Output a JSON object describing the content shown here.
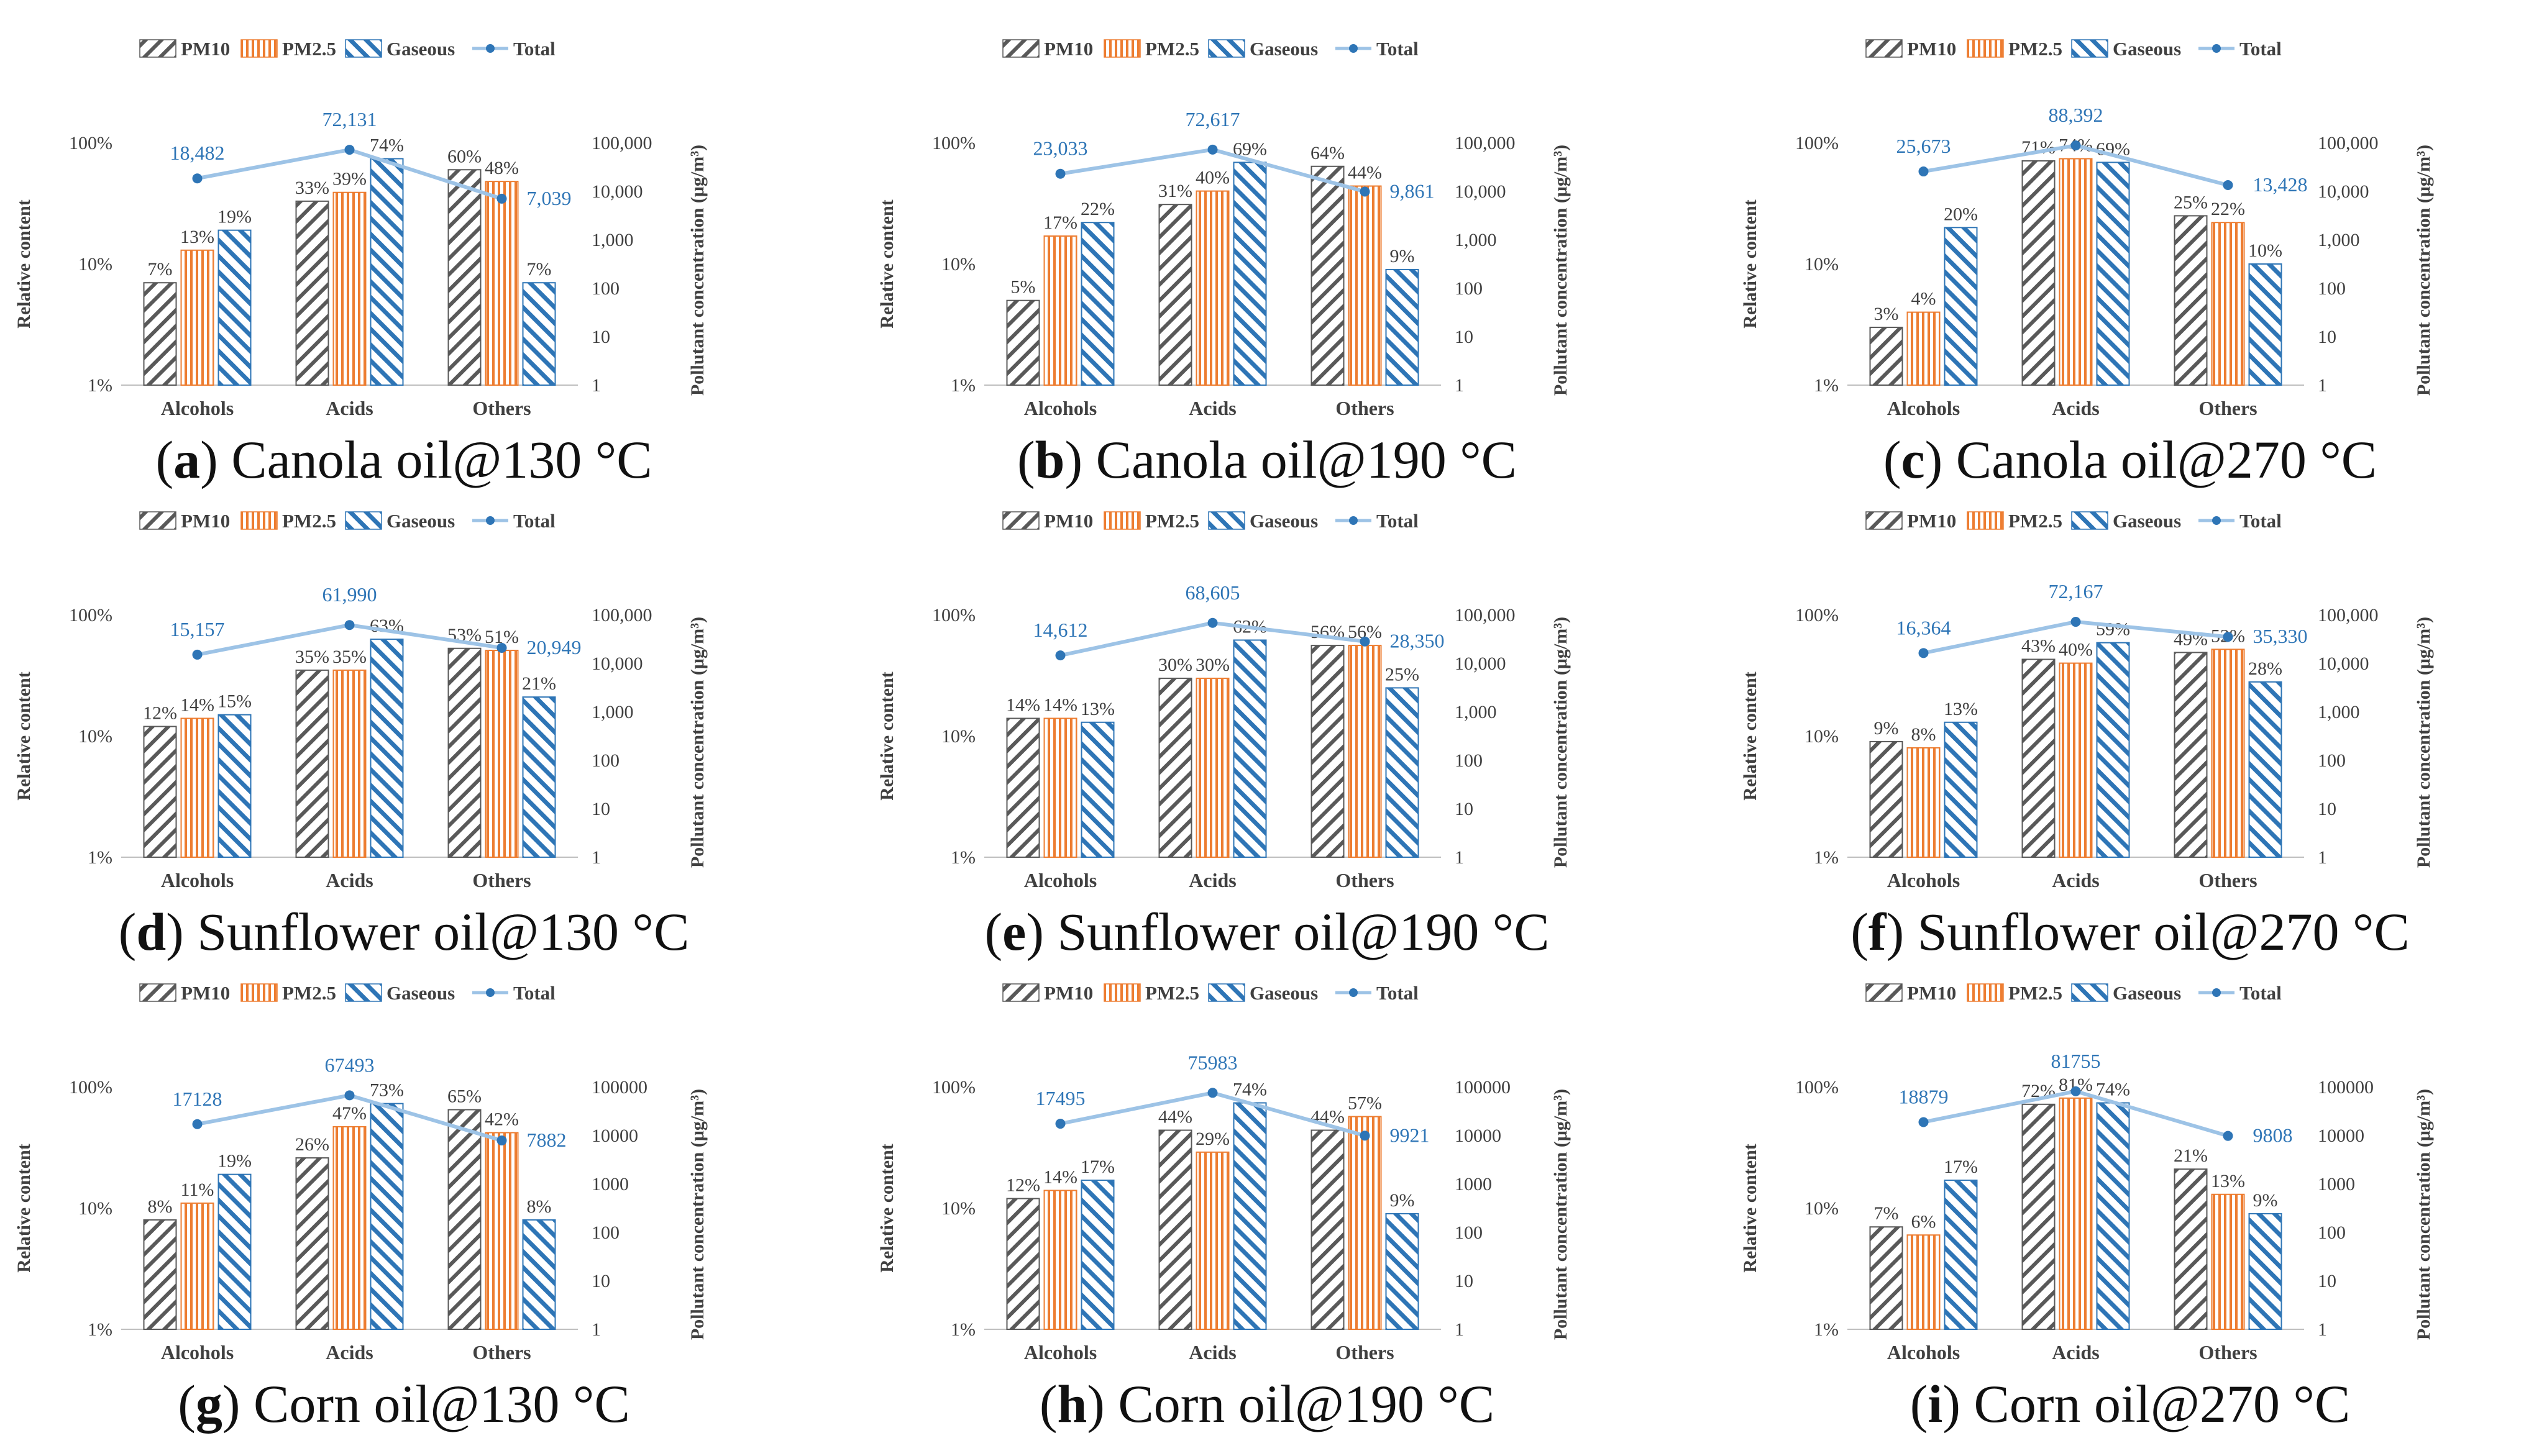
{
  "colors": {
    "pm10": "#595959",
    "pm25": "#ed7d31",
    "gaseous": "#2e75b6",
    "total_line": "#9dc3e6",
    "total_marker": "#2e75b6",
    "total_label": "#2e75b6",
    "axis": "#bfbfbf",
    "text": "#404040"
  },
  "shared": {
    "legend": [
      "PM10",
      "PM2.5",
      "Gaseous",
      "Total"
    ],
    "categories": [
      "Alcohols",
      "Acids",
      "Others"
    ],
    "ylabel_left": "Relative content",
    "ylabel_right": "Pollutant concentration (μg/m³)",
    "left_ticks": [
      "1%",
      "10%",
      "100%"
    ],
    "right_ticks_comma": [
      "1",
      "10",
      "100",
      "1,000",
      "10,000",
      "100,000"
    ],
    "right_ticks_plain": [
      "1",
      "10",
      "100",
      "1000",
      "10000",
      "100000"
    ]
  },
  "panels": [
    {
      "letter": "a",
      "caption": ") Canola oil@130 °C"
    },
    {
      "letter": "b",
      "caption": ") Canola oil@190 °C"
    },
    {
      "letter": "c",
      "caption": ") Canola oil@270 °C"
    },
    {
      "letter": "d",
      "caption": ") Sunflower oil@130 °C"
    },
    {
      "letter": "e",
      "caption": ") Sunflower oil@190 °C"
    },
    {
      "letter": "f",
      "caption": ") Sunflower oil@270 °C"
    },
    {
      "letter": "g",
      "caption": ") Corn oil@130 °C"
    },
    {
      "letter": "h",
      "caption": ") Corn oil@190 °C"
    },
    {
      "letter": "i",
      "caption": ") Corn oil@270 °C"
    }
  ],
  "chart_data": [
    {
      "type": "bar",
      "panel": "a",
      "title": "Canola oil@130 °C",
      "xlabel": "",
      "ylabel": "Relative content",
      "y2label": "Pollutant concentration (μg/m³)",
      "yscale": "log",
      "ylim": [
        0.01,
        1
      ],
      "y2lim": [
        1,
        100000
      ],
      "categories": [
        "Alcohols",
        "Acids",
        "Others"
      ],
      "tick_style": "comma",
      "series": [
        {
          "name": "PM10",
          "values": [
            0.07,
            0.33,
            0.6
          ],
          "labels": [
            "7%",
            "33%",
            "60%"
          ]
        },
        {
          "name": "PM2.5",
          "values": [
            0.13,
            0.39,
            0.48
          ],
          "labels": [
            "13%",
            "39%",
            "48%"
          ]
        },
        {
          "name": "Gaseous",
          "values": [
            0.19,
            0.74,
            0.07
          ],
          "labels": [
            "19%",
            "74%",
            "7%"
          ]
        },
        {
          "name": "Total",
          "axis": "right",
          "values": [
            18482,
            72131,
            7039
          ],
          "labels": [
            "18,482",
            "72,131",
            "7,039"
          ]
        }
      ]
    },
    {
      "type": "bar",
      "panel": "b",
      "title": "Canola oil@190 °C",
      "xlabel": "",
      "ylabel": "Relative content",
      "y2label": "Pollutant concentration (μg/m³)",
      "yscale": "log",
      "ylim": [
        0.01,
        1
      ],
      "y2lim": [
        1,
        100000
      ],
      "categories": [
        "Alcohols",
        "Acids",
        "Others"
      ],
      "tick_style": "comma",
      "series": [
        {
          "name": "PM10",
          "values": [
            0.05,
            0.31,
            0.64
          ],
          "labels": [
            "5%",
            "31%",
            "64%"
          ]
        },
        {
          "name": "PM2.5",
          "values": [
            0.17,
            0.4,
            0.44
          ],
          "labels": [
            "17%",
            "40%",
            "44%"
          ]
        },
        {
          "name": "Gaseous",
          "values": [
            0.22,
            0.69,
            0.09
          ],
          "labels": [
            "22%",
            "69%",
            "9%"
          ]
        },
        {
          "name": "Total",
          "axis": "right",
          "values": [
            23033,
            72617,
            9861
          ],
          "labels": [
            "23,033",
            "72,617",
            "9,861"
          ]
        }
      ]
    },
    {
      "type": "bar",
      "panel": "c",
      "title": "Canola oil@270 °C",
      "xlabel": "",
      "ylabel": "Relative content",
      "y2label": "Pollutant concentration (μg/m³)",
      "yscale": "log",
      "ylim": [
        0.01,
        1
      ],
      "y2lim": [
        1,
        100000
      ],
      "categories": [
        "Alcohols",
        "Acids",
        "Others"
      ],
      "tick_style": "comma",
      "series": [
        {
          "name": "PM10",
          "values": [
            0.03,
            0.71,
            0.25
          ],
          "labels": [
            "3%",
            "71%",
            "25%"
          ]
        },
        {
          "name": "PM2.5",
          "values": [
            0.04,
            0.74,
            0.22
          ],
          "labels": [
            "4%",
            "74%",
            "22%"
          ]
        },
        {
          "name": "Gaseous",
          "values": [
            0.2,
            0.69,
            0.1
          ],
          "labels": [
            "20%",
            "69%",
            "10%"
          ]
        },
        {
          "name": "Total",
          "axis": "right",
          "values": [
            25673,
            88392,
            13428
          ],
          "labels": [
            "25,673",
            "88,392",
            "13,428"
          ]
        }
      ]
    },
    {
      "type": "bar",
      "panel": "d",
      "title": "Sunflower oil@130 °C",
      "xlabel": "",
      "ylabel": "Relative content",
      "y2label": "Pollutant concentration (μg/m³)",
      "yscale": "log",
      "ylim": [
        0.01,
        1
      ],
      "y2lim": [
        1,
        100000
      ],
      "categories": [
        "Alcohols",
        "Acids",
        "Others"
      ],
      "tick_style": "comma",
      "series": [
        {
          "name": "PM10",
          "values": [
            0.12,
            0.35,
            0.53
          ],
          "labels": [
            "12%",
            "35%",
            "53%"
          ]
        },
        {
          "name": "PM2.5",
          "values": [
            0.14,
            0.35,
            0.51
          ],
          "labels": [
            "14%",
            "35%",
            "51%"
          ]
        },
        {
          "name": "Gaseous",
          "values": [
            0.15,
            0.63,
            0.21
          ],
          "labels": [
            "15%",
            "63%",
            "21%"
          ]
        },
        {
          "name": "Total",
          "axis": "right",
          "values": [
            15157,
            61990,
            20949
          ],
          "labels": [
            "15,157",
            "61,990",
            "20,949"
          ]
        }
      ]
    },
    {
      "type": "bar",
      "panel": "e",
      "title": "Sunflower oil@190 °C",
      "xlabel": "",
      "ylabel": "Relative content",
      "y2label": "Pollutant concentration (μg/m³)",
      "yscale": "log",
      "ylim": [
        0.01,
        1
      ],
      "y2lim": [
        1,
        100000
      ],
      "categories": [
        "Alcohols",
        "Acids",
        "Others"
      ],
      "tick_style": "comma",
      "series": [
        {
          "name": "PM10",
          "values": [
            0.14,
            0.3,
            0.56
          ],
          "labels": [
            "14%",
            "30%",
            "56%"
          ]
        },
        {
          "name": "PM2.5",
          "values": [
            0.14,
            0.3,
            0.56
          ],
          "labels": [
            "14%",
            "30%",
            "56%"
          ]
        },
        {
          "name": "Gaseous",
          "values": [
            0.13,
            0.62,
            0.25
          ],
          "labels": [
            "13%",
            "62%",
            "25%"
          ]
        },
        {
          "name": "Total",
          "axis": "right",
          "values": [
            14612,
            68605,
            28350
          ],
          "labels": [
            "14,612",
            "68,605",
            "28,350"
          ]
        }
      ]
    },
    {
      "type": "bar",
      "panel": "f",
      "title": "Sunflower oil@270 °C",
      "xlabel": "",
      "ylabel": "Relative content",
      "y2label": "Pollutant concentration (μg/m³)",
      "yscale": "log",
      "ylim": [
        0.01,
        1
      ],
      "y2lim": [
        1,
        100000
      ],
      "categories": [
        "Alcohols",
        "Acids",
        "Others"
      ],
      "tick_style": "comma",
      "series": [
        {
          "name": "PM10",
          "values": [
            0.09,
            0.43,
            0.49
          ],
          "labels": [
            "9%",
            "43%",
            "49%"
          ]
        },
        {
          "name": "PM2.5",
          "values": [
            0.08,
            0.4,
            0.52
          ],
          "labels": [
            "8%",
            "40%",
            "52%"
          ]
        },
        {
          "name": "Gaseous",
          "values": [
            0.13,
            0.59,
            0.28
          ],
          "labels": [
            "13%",
            "59%",
            "28%"
          ]
        },
        {
          "name": "Total",
          "axis": "right",
          "values": [
            16364,
            72167,
            35330
          ],
          "labels": [
            "16,364",
            "72,167",
            "35,330"
          ]
        }
      ]
    },
    {
      "type": "bar",
      "panel": "g",
      "title": "Corn oil@130 °C",
      "xlabel": "",
      "ylabel": "Relative content",
      "y2label": "Pollutant concentration (μg/m³)",
      "yscale": "log",
      "ylim": [
        0.01,
        1
      ],
      "y2lim": [
        1,
        100000
      ],
      "categories": [
        "Alcohols",
        "Acids",
        "Others"
      ],
      "tick_style": "plain",
      "series": [
        {
          "name": "PM10",
          "values": [
            0.08,
            0.26,
            0.65
          ],
          "labels": [
            "8%",
            "26%",
            "65%"
          ]
        },
        {
          "name": "PM2.5",
          "values": [
            0.11,
            0.47,
            0.42
          ],
          "labels": [
            "11%",
            "47%",
            "42%"
          ]
        },
        {
          "name": "Gaseous",
          "values": [
            0.19,
            0.73,
            0.08
          ],
          "labels": [
            "19%",
            "73%",
            "8%"
          ]
        },
        {
          "name": "Total",
          "axis": "right",
          "values": [
            17128,
            67493,
            7882
          ],
          "labels": [
            "17128",
            "67493",
            "7882"
          ]
        }
      ]
    },
    {
      "type": "bar",
      "panel": "h",
      "title": "Corn oil@190 °C",
      "xlabel": "",
      "ylabel": "Relative content",
      "y2label": "Pollutant concentration (μg/m³)",
      "yscale": "log",
      "ylim": [
        0.01,
        1
      ],
      "y2lim": [
        1,
        100000
      ],
      "categories": [
        "Alcohols",
        "Acids",
        "Others"
      ],
      "tick_style": "plain",
      "series": [
        {
          "name": "PM10",
          "values": [
            0.12,
            0.44,
            0.44
          ],
          "labels": [
            "12%",
            "44%",
            "44%"
          ]
        },
        {
          "name": "PM2.5",
          "values": [
            0.14,
            0.29,
            0.57
          ],
          "labels": [
            "14%",
            "29%",
            "57%"
          ]
        },
        {
          "name": "Gaseous",
          "values": [
            0.17,
            0.74,
            0.09
          ],
          "labels": [
            "17%",
            "74%",
            "9%"
          ]
        },
        {
          "name": "Total",
          "axis": "right",
          "values": [
            17495,
            75983,
            9921
          ],
          "labels": [
            "17495",
            "75983",
            "9921"
          ]
        }
      ]
    },
    {
      "type": "bar",
      "panel": "i",
      "title": "Corn oil@270 °C",
      "xlabel": "",
      "ylabel": "Relative content",
      "y2label": "Pollutant concentration (μg/m³)",
      "yscale": "log",
      "ylim": [
        0.01,
        1
      ],
      "y2lim": [
        1,
        100000
      ],
      "categories": [
        "Alcohols",
        "Acids",
        "Others"
      ],
      "tick_style": "plain",
      "series": [
        {
          "name": "PM10",
          "values": [
            0.07,
            0.72,
            0.21
          ],
          "labels": [
            "7%",
            "72%",
            "21%"
          ]
        },
        {
          "name": "PM2.5",
          "values": [
            0.06,
            0.81,
            0.13
          ],
          "labels": [
            "6%",
            "81%",
            "13%"
          ]
        },
        {
          "name": "Gaseous",
          "values": [
            0.17,
            0.74,
            0.09
          ],
          "labels": [
            "17%",
            "74%",
            "9%"
          ]
        },
        {
          "name": "Total",
          "axis": "right",
          "values": [
            18879,
            81755,
            9808
          ],
          "labels": [
            "18879",
            "81755",
            "9808"
          ]
        }
      ]
    }
  ]
}
